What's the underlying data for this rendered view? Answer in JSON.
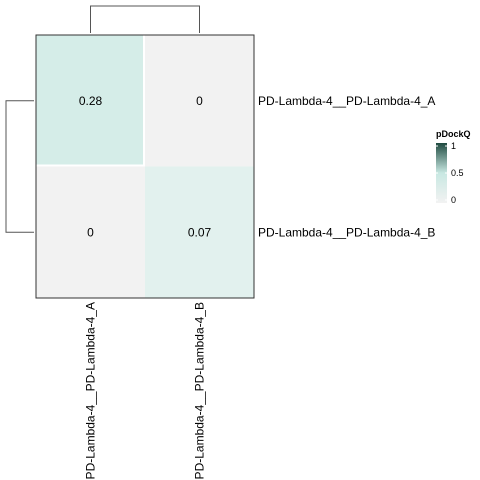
{
  "chart_data": {
    "type": "heatmap",
    "title": "",
    "rows": [
      "PD-Lambda-4__PD-Lambda-4_A",
      "PD-Lambda-4__PD-Lambda-4_B"
    ],
    "columns": [
      "PD-Lambda-4__PD-Lambda-4_A",
      "PD-Lambda-4__PD-Lambda-4_B"
    ],
    "values": [
      [
        0.28,
        0
      ],
      [
        0,
        0.07
      ]
    ],
    "cell_labels": [
      [
        "0.28",
        "0"
      ],
      [
        "0",
        "0.07"
      ]
    ],
    "row_dendrogram": true,
    "column_dendrogram": true,
    "legend": {
      "title": "pDockQ",
      "ticks": [
        {
          "value": 1,
          "label": "1"
        },
        {
          "value": 0.5,
          "label": "0.5"
        },
        {
          "value": 0,
          "label": "0"
        }
      ],
      "range": [
        0,
        1
      ],
      "placement": "right"
    },
    "colors": {
      "low": "#f2f2f2",
      "mid": "#c8e8e2",
      "high": "#1f4a40",
      "border": "#333333"
    }
  }
}
